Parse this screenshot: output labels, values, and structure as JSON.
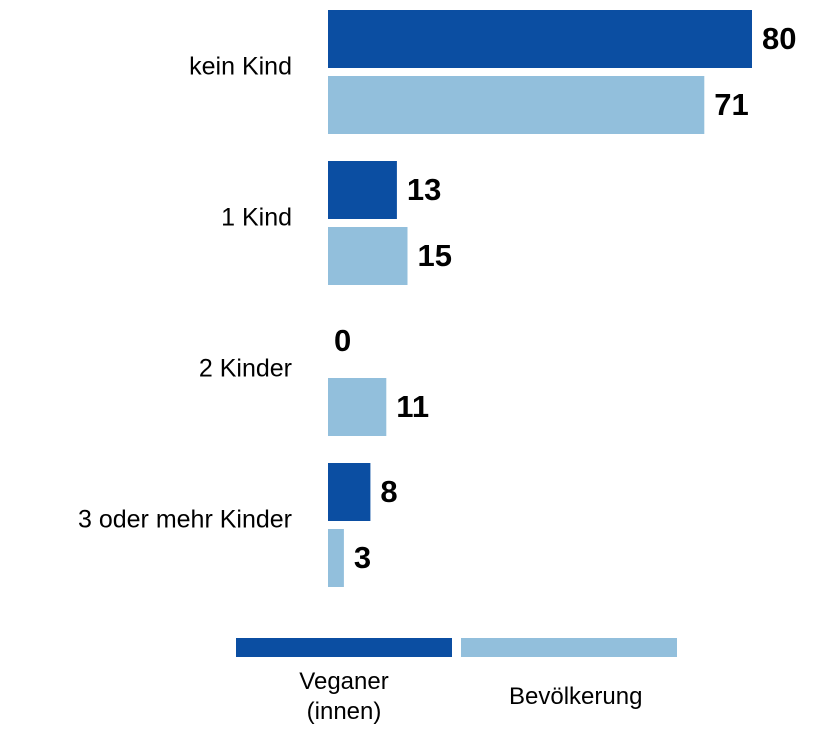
{
  "chart_data": {
    "type": "bar",
    "orientation": "horizontal",
    "categories": [
      "kein Kind",
      "1 Kind",
      "2 Kinder",
      "3 oder mehr Kinder"
    ],
    "series": [
      {
        "name": "Veganer (innen)",
        "color": "#0b4ea2",
        "values": [
          80,
          13,
          0,
          8
        ]
      },
      {
        "name": "Bevölkerung",
        "color": "#92bfdc",
        "values": [
          71,
          15,
          11,
          3
        ]
      }
    ],
    "legend": "bottom"
  }
}
